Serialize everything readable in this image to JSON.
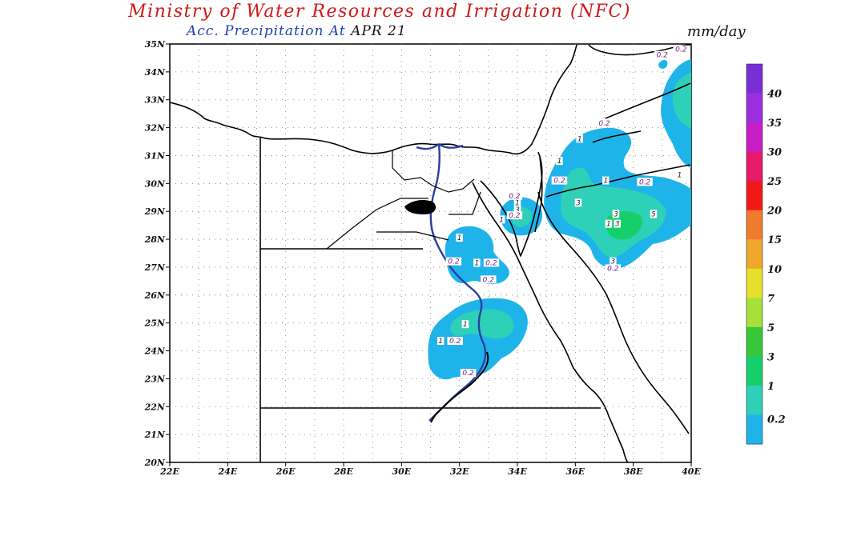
{
  "header": {
    "title": "Ministry of Water Resources and Irrigation (NFC)",
    "subtitle_prefix": "Acc. Precipitation   At",
    "date": "APR 21",
    "units": "mm/day"
  },
  "map": {
    "lon_ticks": [
      "22E",
      "24E",
      "26E",
      "28E",
      "30E",
      "32E",
      "34E",
      "36E",
      "38E",
      "40E"
    ],
    "lat_ticks": [
      "35N",
      "34N",
      "33N",
      "32N",
      "31N",
      "30N",
      "29N",
      "28N",
      "27N",
      "26N",
      "25N",
      "24N",
      "23N",
      "22N",
      "21N",
      "20N"
    ],
    "lon_range": [
      22,
      40
    ],
    "lat_range": [
      20,
      35
    ],
    "grid": "dotted"
  },
  "colorbar": {
    "labels": [
      "40",
      "35",
      "30",
      "25",
      "20",
      "15",
      "10",
      "7",
      "5",
      "3",
      "1",
      "0.2"
    ],
    "colors": [
      "#7a2fd6",
      "#9b2fe0",
      "#c81ec8",
      "#e8186a",
      "#f21818",
      "#f07a2e",
      "#eea72a",
      "#e6e02c",
      "#a8e03a",
      "#37c83a",
      "#15d06a",
      "#2ed0b8",
      "#1eb4ea"
    ]
  },
  "contour_labels": [
    {
      "text": "0.2",
      "lon": 39.0,
      "lat": 34.55
    },
    {
      "text": "0.2",
      "lon": 39.65,
      "lat": 34.75
    },
    {
      "text": "0.2",
      "lon": 37.0,
      "lat": 32.1
    },
    {
      "text": "1",
      "lon": 36.15,
      "lat": 31.55
    },
    {
      "text": "1",
      "lon": 35.45,
      "lat": 30.75
    },
    {
      "text": "0.2",
      "lon": 35.45,
      "lat": 30.05
    },
    {
      "text": "1",
      "lon": 37.05,
      "lat": 30.05
    },
    {
      "text": "0.2",
      "lon": 38.4,
      "lat": 30.0
    },
    {
      "text": "1",
      "lon": 39.6,
      "lat": 30.25
    },
    {
      "text": "0.2",
      "lon": 33.9,
      "lat": 29.5
    },
    {
      "text": "1",
      "lon": 34.0,
      "lat": 29.25
    },
    {
      "text": "3",
      "lon": 34.0,
      "lat": 29.0
    },
    {
      "text": "0.2",
      "lon": 33.9,
      "lat": 28.8
    },
    {
      "text": "1",
      "lon": 33.45,
      "lat": 28.65
    },
    {
      "text": "3",
      "lon": 36.1,
      "lat": 29.25
    },
    {
      "text": "3",
      "lon": 37.4,
      "lat": 28.85
    },
    {
      "text": "5",
      "lon": 38.7,
      "lat": 28.85
    },
    {
      "text": "1",
      "lon": 37.15,
      "lat": 28.5
    },
    {
      "text": "3",
      "lon": 37.45,
      "lat": 28.5
    },
    {
      "text": "3",
      "lon": 37.3,
      "lat": 27.15
    },
    {
      "text": "0.2",
      "lon": 37.3,
      "lat": 26.9
    },
    {
      "text": "1",
      "lon": 32.0,
      "lat": 28.0
    },
    {
      "text": "0.2",
      "lon": 31.8,
      "lat": 27.15
    },
    {
      "text": "1",
      "lon": 32.6,
      "lat": 27.1
    },
    {
      "text": "0.2",
      "lon": 33.1,
      "lat": 27.1
    },
    {
      "text": "0.2",
      "lon": 33.0,
      "lat": 26.5
    },
    {
      "text": "1",
      "lon": 32.2,
      "lat": 24.9
    },
    {
      "text": "1",
      "lon": 31.35,
      "lat": 24.3
    },
    {
      "text": "0.2",
      "lon": 31.85,
      "lat": 24.3
    },
    {
      "text": "0.2",
      "lon": 32.3,
      "lat": 23.15
    }
  ]
}
